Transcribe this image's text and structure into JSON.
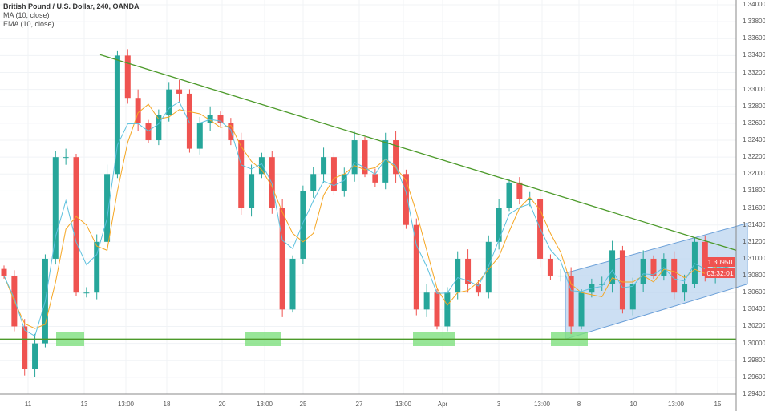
{
  "legend": {
    "title": "British Pound / U.S. Dollar, 240, OANDA",
    "ma": "MA (10, close)",
    "ema": "EMA (10, close)"
  },
  "price_tag": {
    "price": "1.30950",
    "countdown": "03:32:01"
  },
  "colors": {
    "up": "#26a69a",
    "down": "#ef5350",
    "ma": "#f5a623",
    "ema": "#5bc0de",
    "trend": "#4c9a2a",
    "channel": "#b7d1ee",
    "box": "#7ee07e"
  },
  "chart_data": {
    "type": "candlestick",
    "title": "British Pound / U.S. Dollar, 240, OANDA",
    "x_ticks": [
      "11",
      "13",
      "13:00",
      "18",
      "20",
      "13:00",
      "25",
      "27",
      "13:00",
      "Apr",
      "3",
      "13:00",
      "8",
      "10",
      "13:00",
      "15"
    ],
    "y_ticks": [
      "1.34000",
      "1.33800",
      "1.33600",
      "1.33400",
      "1.33200",
      "1.33000",
      "1.32800",
      "1.32600",
      "1.32400",
      "1.32200",
      "1.32000",
      "1.31800",
      "1.31600",
      "1.31400",
      "1.31200",
      "1.31000",
      "1.30800",
      "1.30600",
      "1.30400",
      "1.30200",
      "1.30000",
      "1.29800",
      "1.29600",
      "1.29400"
    ],
    "ylim": [
      1.294,
      1.34
    ],
    "closes": [
      1.308,
      1.302,
      1.297,
      1.3,
      1.31,
      1.322,
      1.322,
      1.306,
      1.306,
      1.312,
      1.32,
      1.334,
      1.329,
      1.326,
      1.324,
      1.327,
      1.33,
      1.3295,
      1.323,
      1.326,
      1.327,
      1.326,
      1.324,
      1.316,
      1.32,
      1.322,
      1.316,
      1.304,
      1.31,
      1.318,
      1.32,
      1.322,
      1.318,
      1.32,
      1.324,
      1.32,
      1.319,
      1.324,
      1.32,
      1.314,
      1.304,
      1.306,
      1.302,
      1.306,
      1.31,
      1.307,
      1.306,
      1.312,
      1.316,
      1.319,
      1.317,
      1.317,
      1.31,
      1.308,
      1.308,
      1.302,
      1.306,
      1.307,
      1.307,
      1.311,
      1.304,
      1.307,
      1.31,
      1.308,
      1.31,
      1.306,
      1.307,
      1.312,
      1.308,
      1.309,
      1.3095
    ],
    "indicators": [
      "MA (10, close)",
      "EMA (10, close)"
    ],
    "annotations": {
      "resistance_trendline": [
        1.3341,
        1.311
      ],
      "support_level": 1.3005,
      "ascending_channel": {
        "top": [
          1.3083,
          1.3142
        ],
        "bottom": [
          1.3005,
          1.307
        ]
      }
    }
  }
}
